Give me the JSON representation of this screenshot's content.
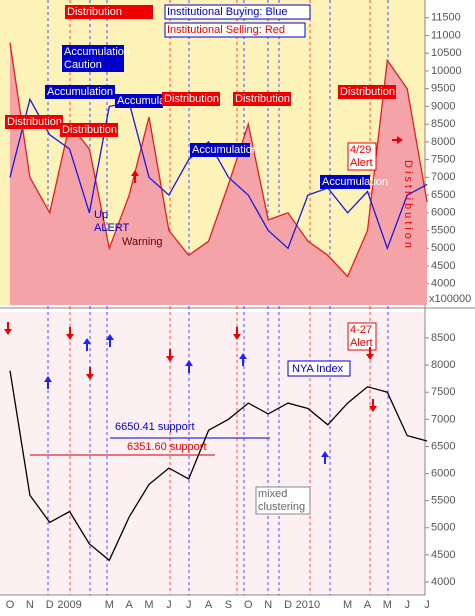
{
  "chart_data": [
    {
      "type": "line",
      "categories": [
        "O",
        "N",
        "D",
        "2009",
        null,
        "M",
        "A",
        "M",
        "J",
        "J",
        "A",
        "S",
        "O",
        "N",
        "D",
        "2010",
        null,
        "M",
        "A",
        "M",
        "J",
        "J"
      ],
      "series": [
        {
          "name": "Institutional Selling: Red",
          "color": "#e02020",
          "fill": "#f4a3a8",
          "values": [
            10800,
            7000,
            6000,
            8500,
            7800,
            5000,
            6500,
            8700,
            5500,
            4800,
            5200,
            6800,
            8500,
            5800,
            6000,
            5200,
            4800,
            4200,
            5500,
            10300,
            9500,
            6300
          ]
        },
        {
          "name": "Institutional Buying: Blue",
          "color": "#1a1ae0",
          "values": [
            7000,
            9200,
            8200,
            7800,
            6000,
            9000,
            9100,
            7000,
            6500,
            7500,
            8000,
            7000,
            6500,
            5500,
            5000,
            6500,
            6700,
            6000,
            6600,
            5000,
            6500,
            6800
          ]
        }
      ],
      "ylim": [
        3400,
        12000
      ],
      "yticks": [
        4000,
        4500,
        5000,
        5500,
        6000,
        6500,
        7000,
        7500,
        8000,
        8500,
        9000,
        9500,
        10000,
        10500,
        11000,
        11500
      ],
      "ylabel": "x100000",
      "annotations": [
        "Distribution",
        "Institutional Buying: Blue",
        "Institutional Selling: Red",
        "Accumulation Caution",
        "Accumulation",
        "Accumulation",
        "Distribution",
        "Distribution",
        "Distribution",
        "Distribution",
        "Distribution",
        "Accumulation",
        "Accumulation",
        "4/29 Alert",
        "Distribution",
        "Up ALERT",
        "Warning"
      ]
    },
    {
      "type": "line",
      "categories": [
        "O",
        "N",
        "D",
        "2009",
        null,
        "M",
        "A",
        "M",
        "J",
        "J",
        "A",
        "S",
        "O",
        "N",
        "D",
        "2010",
        null,
        "M",
        "A",
        "M",
        "J",
        "J"
      ],
      "series": [
        {
          "name": "NYA Index",
          "color": "#000000",
          "values": [
            7900,
            5600,
            5100,
            5300,
            4700,
            4400,
            5200,
            5800,
            6100,
            5900,
            6800,
            7000,
            7300,
            7100,
            7300,
            7200,
            6900,
            7300,
            7600,
            7500,
            6700,
            6600
          ]
        }
      ],
      "ylim": [
        3760,
        8980
      ],
      "yticks": [
        4000,
        4500,
        5000,
        5500,
        6000,
        6500,
        7000,
        7500,
        8000,
        8500
      ],
      "annotations": [
        "4-27 Alert",
        "6650.41 support",
        "6351.60 support",
        "mixed clustering"
      ]
    }
  ]
}
